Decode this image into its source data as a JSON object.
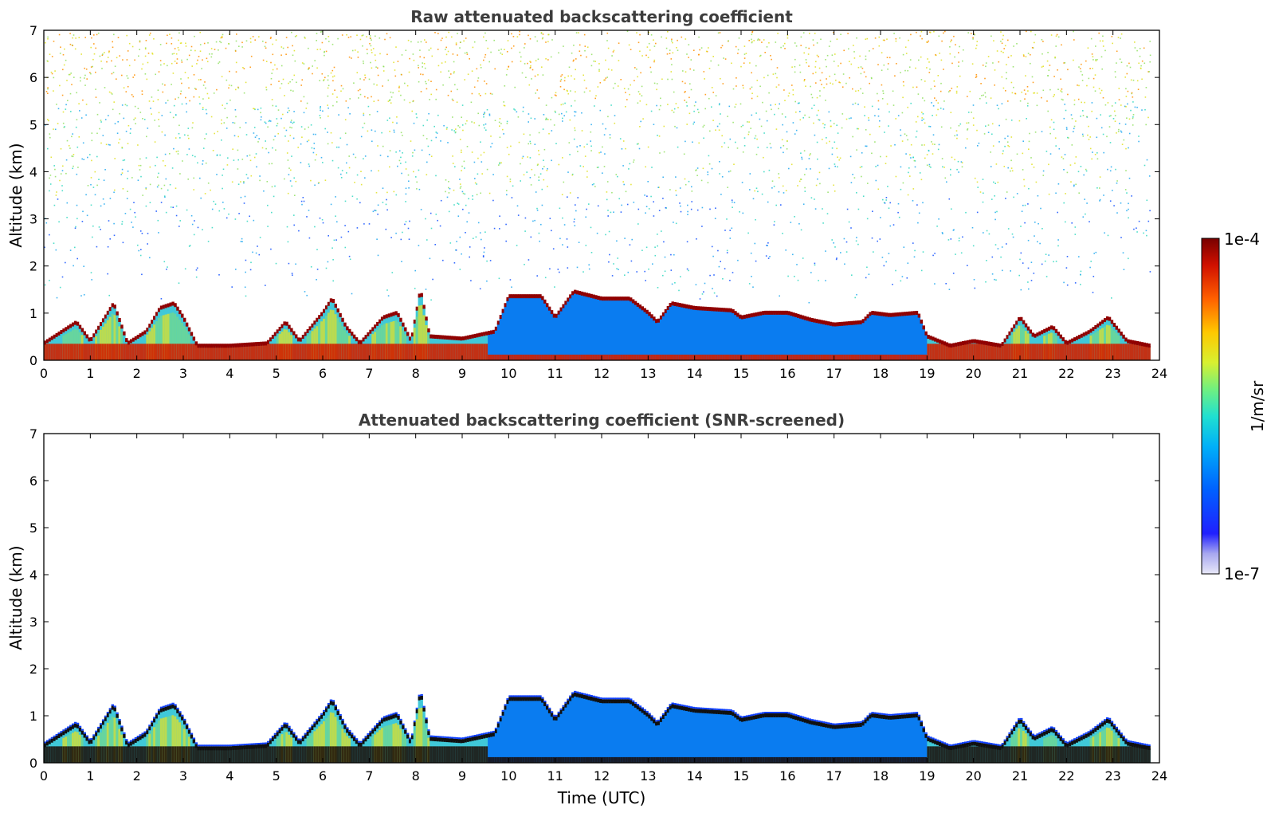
{
  "chart_data": [
    {
      "type": "heatmap",
      "title": "Raw attenuated backscattering coefficient",
      "xlabel": "",
      "ylabel": "Altitude (km)",
      "xlim": [
        0,
        24
      ],
      "ylim": [
        0,
        7
      ],
      "xticks": [
        "0",
        "1",
        "2",
        "3",
        "4",
        "5",
        "6",
        "7",
        "8",
        "9",
        "10",
        "11",
        "12",
        "13",
        "14",
        "15",
        "16",
        "17",
        "18",
        "19",
        "20",
        "21",
        "22",
        "23",
        "24"
      ],
      "yticks": [
        "0",
        "1",
        "2",
        "3",
        "4",
        "5",
        "6",
        "7"
      ],
      "data_extent_hours": [
        0,
        23.8
      ],
      "noise_present": true,
      "boundary_layer_top_km": [
        [
          0,
          0.35
        ],
        [
          0.7,
          0.8
        ],
        [
          1.0,
          0.4
        ],
        [
          1.5,
          1.2
        ],
        [
          1.8,
          0.35
        ],
        [
          2.2,
          0.6
        ],
        [
          2.5,
          1.1
        ],
        [
          2.8,
          1.2
        ],
        [
          3.0,
          0.9
        ],
        [
          3.3,
          0.3
        ],
        [
          4.0,
          0.3
        ],
        [
          4.8,
          0.35
        ],
        [
          5.2,
          0.8
        ],
        [
          5.5,
          0.4
        ],
        [
          6.0,
          1.0
        ],
        [
          6.2,
          1.3
        ],
        [
          6.5,
          0.7
        ],
        [
          6.8,
          0.35
        ],
        [
          7.3,
          0.9
        ],
        [
          7.6,
          1.0
        ],
        [
          7.9,
          0.4
        ],
        [
          8.1,
          1.5
        ],
        [
          8.3,
          0.5
        ],
        [
          9.0,
          0.45
        ],
        [
          9.7,
          0.6
        ],
        [
          10.0,
          1.35
        ],
        [
          10.7,
          1.35
        ],
        [
          11.0,
          0.9
        ],
        [
          11.4,
          1.45
        ],
        [
          12.0,
          1.3
        ],
        [
          12.6,
          1.3
        ],
        [
          13.0,
          1.0
        ],
        [
          13.2,
          0.8
        ],
        [
          13.5,
          1.2
        ],
        [
          14.0,
          1.1
        ],
        [
          14.8,
          1.05
        ],
        [
          15.0,
          0.9
        ],
        [
          15.5,
          1.0
        ],
        [
          16.0,
          1.0
        ],
        [
          16.5,
          0.85
        ],
        [
          17.0,
          0.75
        ],
        [
          17.6,
          0.8
        ],
        [
          17.8,
          1.0
        ],
        [
          18.2,
          0.95
        ],
        [
          18.8,
          1.0
        ],
        [
          19.0,
          0.5
        ],
        [
          19.5,
          0.3
        ],
        [
          20.0,
          0.4
        ],
        [
          20.6,
          0.3
        ],
        [
          21.0,
          0.9
        ],
        [
          21.3,
          0.5
        ],
        [
          21.7,
          0.7
        ],
        [
          22.0,
          0.35
        ],
        [
          22.5,
          0.6
        ],
        [
          22.9,
          0.9
        ],
        [
          23.3,
          0.4
        ],
        [
          23.8,
          0.3
        ]
      ]
    },
    {
      "type": "heatmap",
      "title": "Attenuated backscattering coefficient (SNR-screened)",
      "xlabel": "Time (UTC)",
      "ylabel": "Altitude (km)",
      "xlim": [
        0,
        24
      ],
      "ylim": [
        0,
        7
      ],
      "xticks": [
        "0",
        "1",
        "2",
        "3",
        "4",
        "5",
        "6",
        "7",
        "8",
        "9",
        "10",
        "11",
        "12",
        "13",
        "14",
        "15",
        "16",
        "17",
        "18",
        "19",
        "20",
        "21",
        "22",
        "23",
        "24"
      ],
      "yticks": [
        "0",
        "1",
        "2",
        "3",
        "4",
        "5",
        "6",
        "7"
      ],
      "data_extent_hours": [
        0,
        23.8
      ],
      "noise_present": false
    }
  ],
  "colorbar": {
    "label": "1/m/sr",
    "max_label": "1e-4",
    "min_label": "1e-7",
    "scale": "log",
    "colors": [
      "#e8e8f8",
      "#b0b0f0",
      "#7070f0",
      "#0010ff",
      "#0050ff",
      "#0090ff",
      "#00c8f8",
      "#30e8c0",
      "#90f060",
      "#e8f020",
      "#ffc000",
      "#ff7000",
      "#f02000",
      "#b00000",
      "#800000"
    ]
  }
}
